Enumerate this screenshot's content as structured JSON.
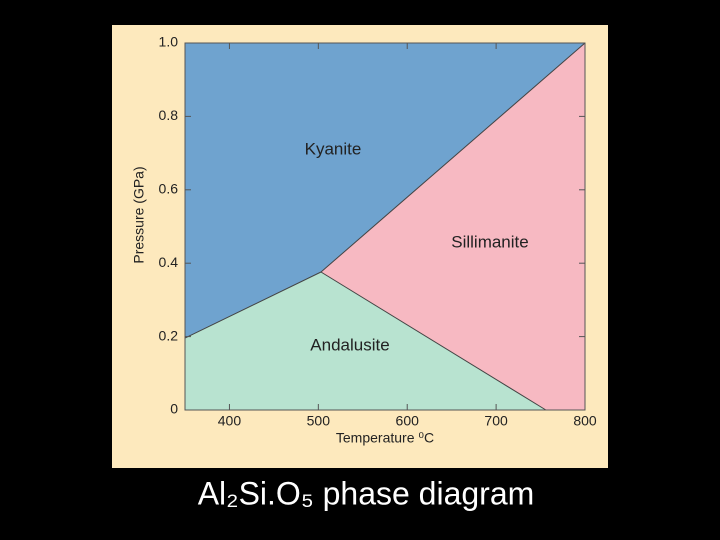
{
  "chart_data": {
    "type": "phase",
    "title": "Al₂Si.O₅ phase diagram",
    "x_label": "Temperature ⁰C",
    "y_label": "Pressure (GPa)",
    "xlim": [
      350,
      800
    ],
    "ylim": [
      0,
      1
    ],
    "xticks": [
      400,
      500,
      600,
      700,
      800
    ],
    "yticks": [
      0,
      0.2,
      0.4,
      0.6,
      0.8,
      {
        "value": 1,
        "label": "1.0"
      }
    ],
    "regions": [
      {
        "name": "Kyanite",
        "color": "#6fa3cf"
      },
      {
        "name": "Sillimanite",
        "color": "#f7b9c2"
      },
      {
        "name": "Andalusite",
        "color": "#b8e3d0"
      }
    ],
    "boundaries": [
      {
        "x": [
          350,
          503
        ],
        "values": [
          0.196,
          0.376
        ]
      },
      {
        "x": [
          503,
          800
        ],
        "values": [
          0.376,
          1
        ]
      },
      {
        "x": [
          503,
          756
        ],
        "values": [
          0.376,
          0
        ]
      }
    ]
  }
}
